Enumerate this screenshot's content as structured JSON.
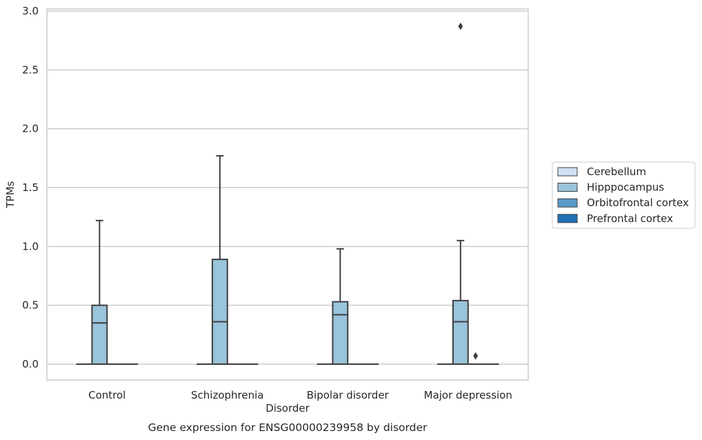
{
  "chart_data": {
    "type": "box",
    "caption": "Gene expression for ENSG00000239958 by disorder",
    "xlabel": "Disorder",
    "ylabel": "TPMs",
    "ylim": [
      -0.14,
      3.02
    ],
    "yticks": [
      0.0,
      0.5,
      1.0,
      1.5,
      2.0,
      2.5,
      3.0
    ],
    "ytick_labels": [
      "0.0",
      "0.5",
      "1.0",
      "1.5",
      "2.0",
      "2.5",
      "3.0"
    ],
    "grid": "horizontal",
    "legend_placement": "right",
    "categories": [
      "Control",
      "Schizophrenia",
      "Bipolar disorder",
      "Major depression"
    ],
    "series": [
      {
        "name": "Cerebellum",
        "color": "#d0e1f2",
        "boxes": [
          {
            "min": 0,
            "q1": 0,
            "median": 0,
            "q3": 0,
            "max": 0,
            "outliers": []
          },
          {
            "min": 0,
            "q1": 0,
            "median": 0,
            "q3": 0,
            "max": 0,
            "outliers": []
          },
          {
            "min": 0,
            "q1": 0,
            "median": 0,
            "q3": 0,
            "max": 0,
            "outliers": []
          },
          {
            "min": 0,
            "q1": 0,
            "median": 0,
            "q3": 0,
            "max": 0,
            "outliers": []
          }
        ]
      },
      {
        "name": "Hipppocampus",
        "color": "#9ac3dc",
        "boxes": [
          {
            "min": 0,
            "q1": 0,
            "median": 0.35,
            "q3": 0.5,
            "max": 1.22,
            "outliers": []
          },
          {
            "min": 0,
            "q1": 0,
            "median": 0.36,
            "q3": 0.89,
            "max": 1.77,
            "outliers": []
          },
          {
            "min": 0,
            "q1": 0,
            "median": 0.42,
            "q3": 0.53,
            "max": 0.98,
            "outliers": []
          },
          {
            "min": 0,
            "q1": 0,
            "median": 0.36,
            "q3": 0.54,
            "max": 1.05,
            "outliers": [
              2.87
            ]
          }
        ]
      },
      {
        "name": "Orbitofrontal cortex",
        "color": "#5a9ac8",
        "boxes": [
          {
            "min": 0,
            "q1": 0,
            "median": 0,
            "q3": 0,
            "max": 0,
            "outliers": []
          },
          {
            "min": 0,
            "q1": 0,
            "median": 0,
            "q3": 0,
            "max": 0,
            "outliers": []
          },
          {
            "min": 0,
            "q1": 0,
            "median": 0,
            "q3": 0,
            "max": 0,
            "outliers": []
          },
          {
            "min": 0,
            "q1": 0,
            "median": 0,
            "q3": 0,
            "max": 0,
            "outliers": [
              0.07
            ]
          }
        ]
      },
      {
        "name": "Prefrontal cortex",
        "color": "#2271b5",
        "boxes": [
          {
            "min": 0,
            "q1": 0,
            "median": 0,
            "q3": 0,
            "max": 0,
            "outliers": []
          },
          {
            "min": 0,
            "q1": 0,
            "median": 0,
            "q3": 0,
            "max": 0,
            "outliers": []
          },
          {
            "min": 0,
            "q1": 0,
            "median": 0,
            "q3": 0,
            "max": 0,
            "outliers": []
          },
          {
            "min": 0,
            "q1": 0,
            "median": 0,
            "q3": 0,
            "max": 0,
            "outliers": []
          }
        ]
      }
    ]
  }
}
